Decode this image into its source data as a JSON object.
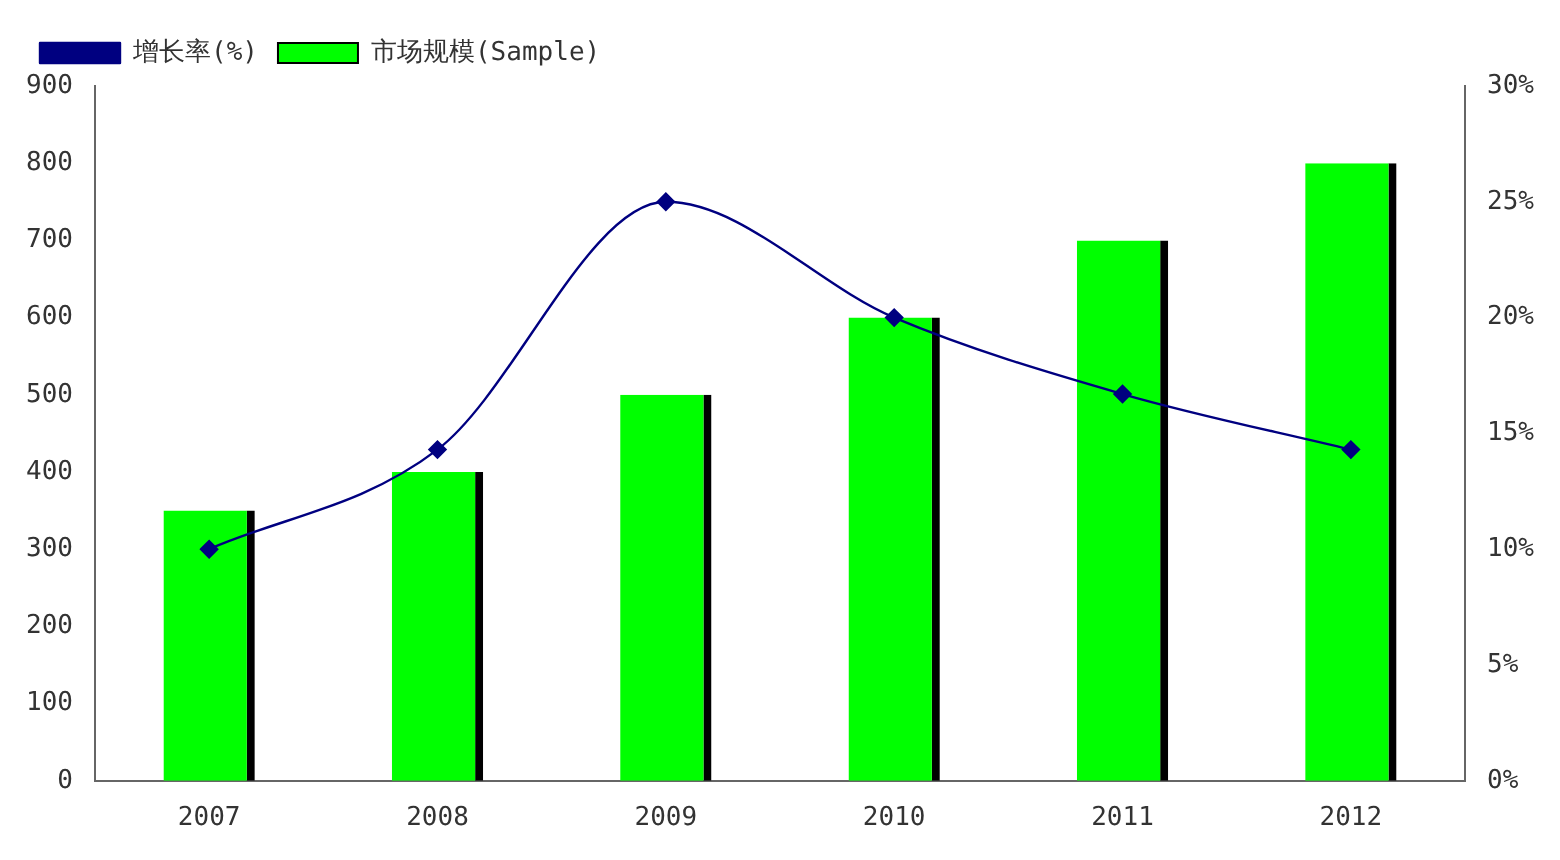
{
  "chart_data": {
    "type": "bar",
    "categories": [
      "2007",
      "2008",
      "2009",
      "2010",
      "2011",
      "2012"
    ],
    "series": [
      {
        "name": "市场规模(Sample)",
        "color": "#00ff00",
        "values": [
          350,
          400,
          500,
          600,
          700,
          800
        ]
      },
      {
        "name": "增长率(%)",
        "type": "line",
        "axis": "y2",
        "color": "#000080",
        "marker": "diamond",
        "values": [
          10,
          14.3,
          25,
          20,
          16.7,
          14.3
        ]
      }
    ],
    "ylim": [
      0,
      900
    ],
    "yticks": [
      0,
      100,
      200,
      300,
      400,
      500,
      600,
      700,
      800,
      900
    ],
    "y2lim": [
      0,
      30
    ],
    "y2ticks": [
      {
        "value": 0,
        "label": "0%"
      },
      {
        "value": 5,
        "label": "5%"
      },
      {
        "value": 10,
        "label": "10%"
      },
      {
        "value": 15,
        "label": "15%"
      },
      {
        "value": 20,
        "label": "20%"
      },
      {
        "value": 25,
        "label": "25%"
      },
      {
        "value": 30,
        "label": "30%"
      }
    ],
    "grid": false,
    "legend": "top left"
  }
}
